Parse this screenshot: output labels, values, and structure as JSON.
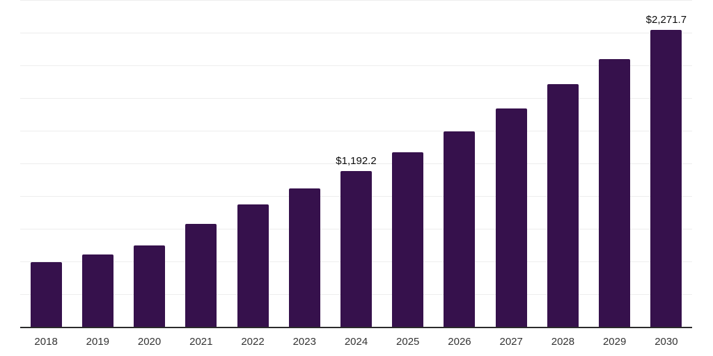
{
  "chart_data": {
    "type": "bar",
    "title": "",
    "xlabel": "",
    "ylabel": "",
    "categories": [
      "2018",
      "2019",
      "2020",
      "2021",
      "2022",
      "2023",
      "2024",
      "2025",
      "2026",
      "2027",
      "2028",
      "2029",
      "2030"
    ],
    "values": [
      495,
      553,
      622,
      787,
      936,
      1059,
      1192.2,
      1335,
      1494,
      1670,
      1856,
      2048,
      2271.7
    ],
    "data_labels": {
      "2024": "$1,192.2",
      "2030": "$2,271.7"
    },
    "ylim": [
      0,
      2500
    ],
    "grid_step": 250,
    "grid_on": true,
    "legend_position": "none",
    "colors": {
      "bar": "#36114C",
      "gridline": "#ededed",
      "axis_line": "#2b2b2b",
      "tick_label": "#333333",
      "data_label": "#0a0a0a",
      "background": "#ffffff"
    }
  }
}
